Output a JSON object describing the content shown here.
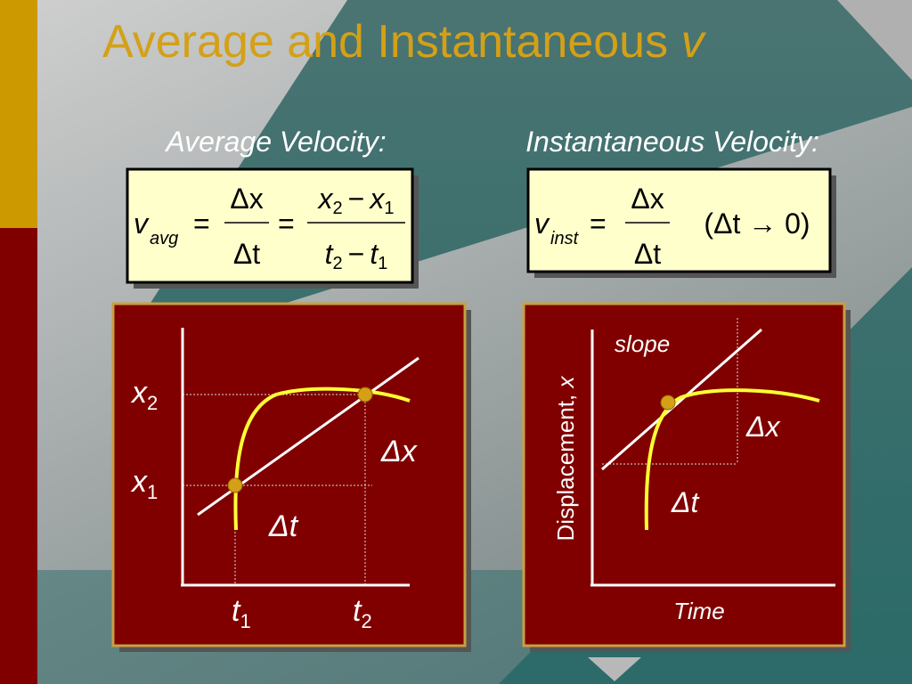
{
  "title": {
    "text": "Average and Instantaneous",
    "symbol": "v"
  },
  "average": {
    "heading": "Average Velocity:",
    "formula": {
      "v": "v",
      "sub": "avg",
      "eq1": "=",
      "num1": "Δx",
      "den1": "Δt",
      "eq2": "=",
      "num2": {
        "a": "x",
        "a_sub": "2",
        "minus": "−",
        "b": "x",
        "b_sub": "1"
      },
      "den2": {
        "a": "t",
        "a_sub": "2",
        "minus": "−",
        "b": "t",
        "b_sub": "1"
      }
    }
  },
  "instantaneous": {
    "heading": "Instantaneous Velocity:",
    "formula": {
      "v": "v",
      "sub": "inst",
      "eq": "=",
      "num": "Δx",
      "den": "Δt",
      "limit": "(Δt → 0)"
    }
  },
  "graph_left": {
    "x2": {
      "main": "x",
      "sub": "2"
    },
    "x1": {
      "main": "x",
      "sub": "1"
    },
    "dx": "Δx",
    "dt": "Δt",
    "t1": {
      "main": "t",
      "sub": "1"
    },
    "t2": {
      "main": "t",
      "sub": "2"
    }
  },
  "graph_right": {
    "slope": "slope",
    "y_axis": {
      "text": "Displacement,",
      "symbol": "x"
    },
    "dx": "Δx",
    "dt": "Δt",
    "x_axis": "Time"
  }
}
